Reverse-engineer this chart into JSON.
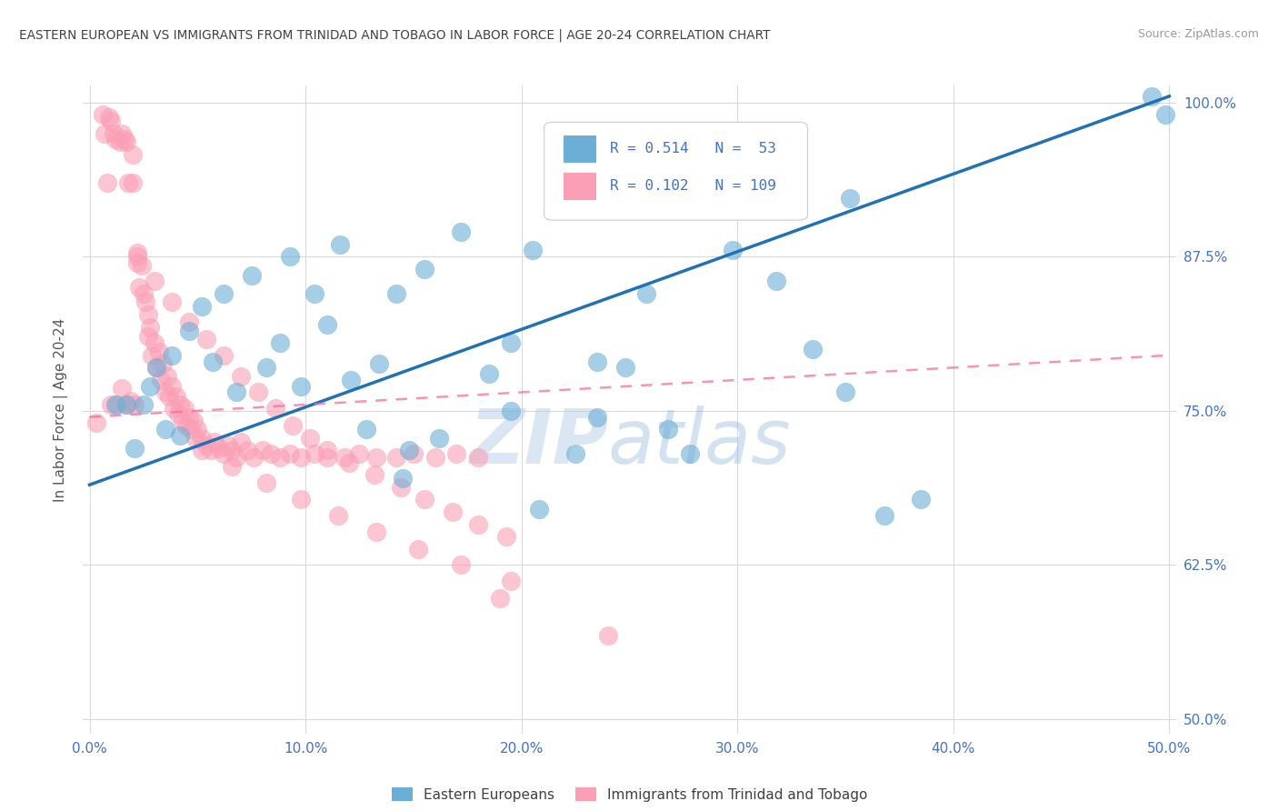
{
  "title": "EASTERN EUROPEAN VS IMMIGRANTS FROM TRINIDAD AND TOBAGO IN LABOR FORCE | AGE 20-24 CORRELATION CHART",
  "source": "Source: ZipAtlas.com",
  "ylabel_label": "In Labor Force | Age 20-24",
  "watermark_zip": "ZIP",
  "watermark_atlas": "atlas",
  "legend_blue_r": "R = 0.514",
  "legend_blue_n": "N =  53",
  "legend_pink_r": "R = 0.102",
  "legend_pink_n": "N = 109",
  "legend_blue_label": "Eastern Europeans",
  "legend_pink_label": "Immigrants from Trinidad and Tobago",
  "blue_color": "#6baed6",
  "pink_color": "#fa9fb5",
  "blue_line_color": "#2171b5",
  "pink_line_color": "#f768a1",
  "title_color": "#404040",
  "axis_tick_color": "#4472c4",
  "grid_color": "#d9d9d9",
  "xlim": [
    -0.003,
    0.503
  ],
  "ylim": [
    0.488,
    1.014
  ],
  "ytick_vals": [
    0.5,
    0.625,
    0.75,
    0.875,
    1.0
  ],
  "xtick_vals": [
    0.0,
    0.1,
    0.2,
    0.3,
    0.4,
    0.5
  ],
  "ytick_labels": [
    "50.0%",
    "62.5%",
    "75.0%",
    "87.5%",
    "100.0%"
  ],
  "xtick_labels": [
    "0.0%",
    "10.0%",
    "20.0%",
    "30.0%",
    "40.0%",
    "50.0%"
  ],
  "blue_line_x0": 0.0,
  "blue_line_y0": 0.69,
  "blue_line_x1": 0.5,
  "blue_line_y1": 1.005,
  "pink_line_x0": 0.0,
  "pink_line_y0": 0.745,
  "pink_line_x1": 0.5,
  "pink_line_y1": 0.795,
  "blue_x": [
    0.012,
    0.017,
    0.021,
    0.025,
    0.028,
    0.031,
    0.035,
    0.038,
    0.042,
    0.046,
    0.052,
    0.057,
    0.062,
    0.068,
    0.075,
    0.082,
    0.088,
    0.093,
    0.098,
    0.104,
    0.11,
    0.116,
    0.121,
    0.128,
    0.134,
    0.142,
    0.148,
    0.155,
    0.162,
    0.172,
    0.185,
    0.195,
    0.205,
    0.215,
    0.225,
    0.235,
    0.248,
    0.258,
    0.268,
    0.278,
    0.298,
    0.318,
    0.335,
    0.35,
    0.368,
    0.385,
    0.235,
    0.145,
    0.195,
    0.208,
    0.498,
    0.352,
    0.492
  ],
  "blue_y": [
    0.755,
    0.755,
    0.72,
    0.755,
    0.77,
    0.785,
    0.735,
    0.795,
    0.73,
    0.815,
    0.835,
    0.79,
    0.845,
    0.765,
    0.86,
    0.785,
    0.805,
    0.875,
    0.77,
    0.845,
    0.82,
    0.885,
    0.775,
    0.735,
    0.788,
    0.845,
    0.718,
    0.865,
    0.728,
    0.895,
    0.78,
    0.805,
    0.88,
    0.915,
    0.715,
    0.79,
    0.785,
    0.845,
    0.735,
    0.715,
    0.88,
    0.855,
    0.8,
    0.765,
    0.665,
    0.678,
    0.745,
    0.695,
    0.75,
    0.67,
    0.99,
    0.922,
    1.005
  ],
  "pink_x": [
    0.003,
    0.006,
    0.007,
    0.008,
    0.009,
    0.01,
    0.01,
    0.011,
    0.012,
    0.013,
    0.014,
    0.015,
    0.015,
    0.016,
    0.017,
    0.017,
    0.018,
    0.019,
    0.02,
    0.02,
    0.021,
    0.022,
    0.022,
    0.023,
    0.024,
    0.025,
    0.026,
    0.027,
    0.027,
    0.028,
    0.029,
    0.03,
    0.031,
    0.032,
    0.033,
    0.034,
    0.035,
    0.036,
    0.037,
    0.038,
    0.039,
    0.04,
    0.041,
    0.042,
    0.043,
    0.044,
    0.045,
    0.046,
    0.047,
    0.048,
    0.049,
    0.05,
    0.052,
    0.054,
    0.056,
    0.058,
    0.06,
    0.062,
    0.064,
    0.066,
    0.068,
    0.07,
    0.073,
    0.076,
    0.08,
    0.084,
    0.088,
    0.093,
    0.098,
    0.104,
    0.11,
    0.118,
    0.125,
    0.133,
    0.142,
    0.15,
    0.16,
    0.17,
    0.18,
    0.022,
    0.03,
    0.038,
    0.046,
    0.054,
    0.062,
    0.07,
    0.078,
    0.086,
    0.094,
    0.102,
    0.11,
    0.12,
    0.132,
    0.144,
    0.155,
    0.168,
    0.18,
    0.193,
    0.052,
    0.066,
    0.082,
    0.098,
    0.115,
    0.133,
    0.152,
    0.172,
    0.195,
    0.19,
    0.24
  ],
  "pink_y": [
    0.74,
    0.99,
    0.975,
    0.935,
    0.988,
    0.985,
    0.755,
    0.975,
    0.97,
    0.755,
    0.968,
    0.768,
    0.975,
    0.97,
    0.755,
    0.968,
    0.935,
    0.758,
    0.958,
    0.935,
    0.755,
    0.87,
    0.878,
    0.85,
    0.868,
    0.845,
    0.838,
    0.828,
    0.81,
    0.818,
    0.795,
    0.805,
    0.785,
    0.798,
    0.775,
    0.788,
    0.765,
    0.778,
    0.762,
    0.77,
    0.752,
    0.762,
    0.748,
    0.755,
    0.742,
    0.752,
    0.738,
    0.745,
    0.735,
    0.742,
    0.728,
    0.735,
    0.728,
    0.722,
    0.718,
    0.725,
    0.72,
    0.715,
    0.722,
    0.718,
    0.712,
    0.725,
    0.718,
    0.712,
    0.718,
    0.715,
    0.712,
    0.715,
    0.712,
    0.715,
    0.712,
    0.712,
    0.715,
    0.712,
    0.712,
    0.715,
    0.712,
    0.715,
    0.712,
    0.875,
    0.855,
    0.838,
    0.822,
    0.808,
    0.795,
    0.778,
    0.765,
    0.752,
    0.738,
    0.728,
    0.718,
    0.708,
    0.698,
    0.688,
    0.678,
    0.668,
    0.658,
    0.648,
    0.718,
    0.705,
    0.692,
    0.678,
    0.665,
    0.652,
    0.638,
    0.625,
    0.612,
    0.598,
    0.568
  ]
}
